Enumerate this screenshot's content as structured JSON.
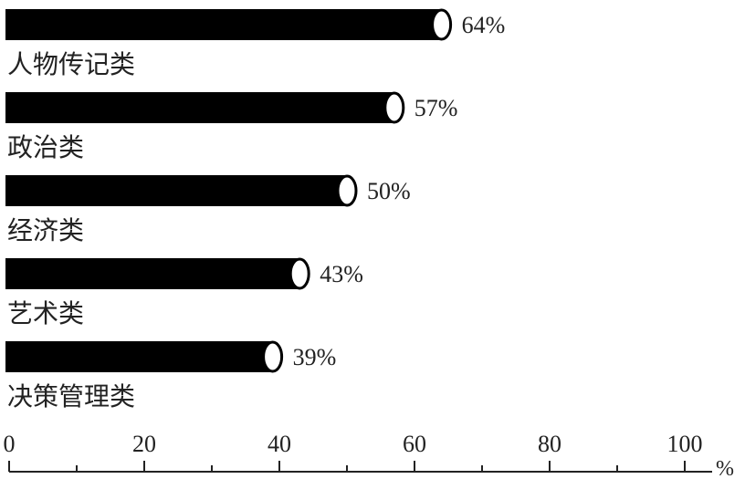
{
  "chart_data": {
    "type": "bar",
    "orientation": "horizontal",
    "categories": [
      "人物传记类",
      "政治类",
      "经济类",
      "艺术类",
      "决策管理类"
    ],
    "values": [
      64,
      57,
      50,
      43,
      39
    ],
    "value_labels": [
      "64%",
      "57%",
      "50%",
      "43%",
      "39%"
    ],
    "xlim": [
      0,
      100
    ],
    "x_ticks": [
      0,
      20,
      40,
      60,
      80,
      100
    ],
    "x_tick_labels": [
      "0",
      "20",
      "40",
      "60",
      "80",
      "100"
    ],
    "x_minor_ticks": [
      10,
      30,
      50,
      70,
      90
    ],
    "x_unit": "%",
    "bar_color": "#000000",
    "bar_end_color": "#ffffff",
    "grid": false,
    "legend": "none"
  }
}
